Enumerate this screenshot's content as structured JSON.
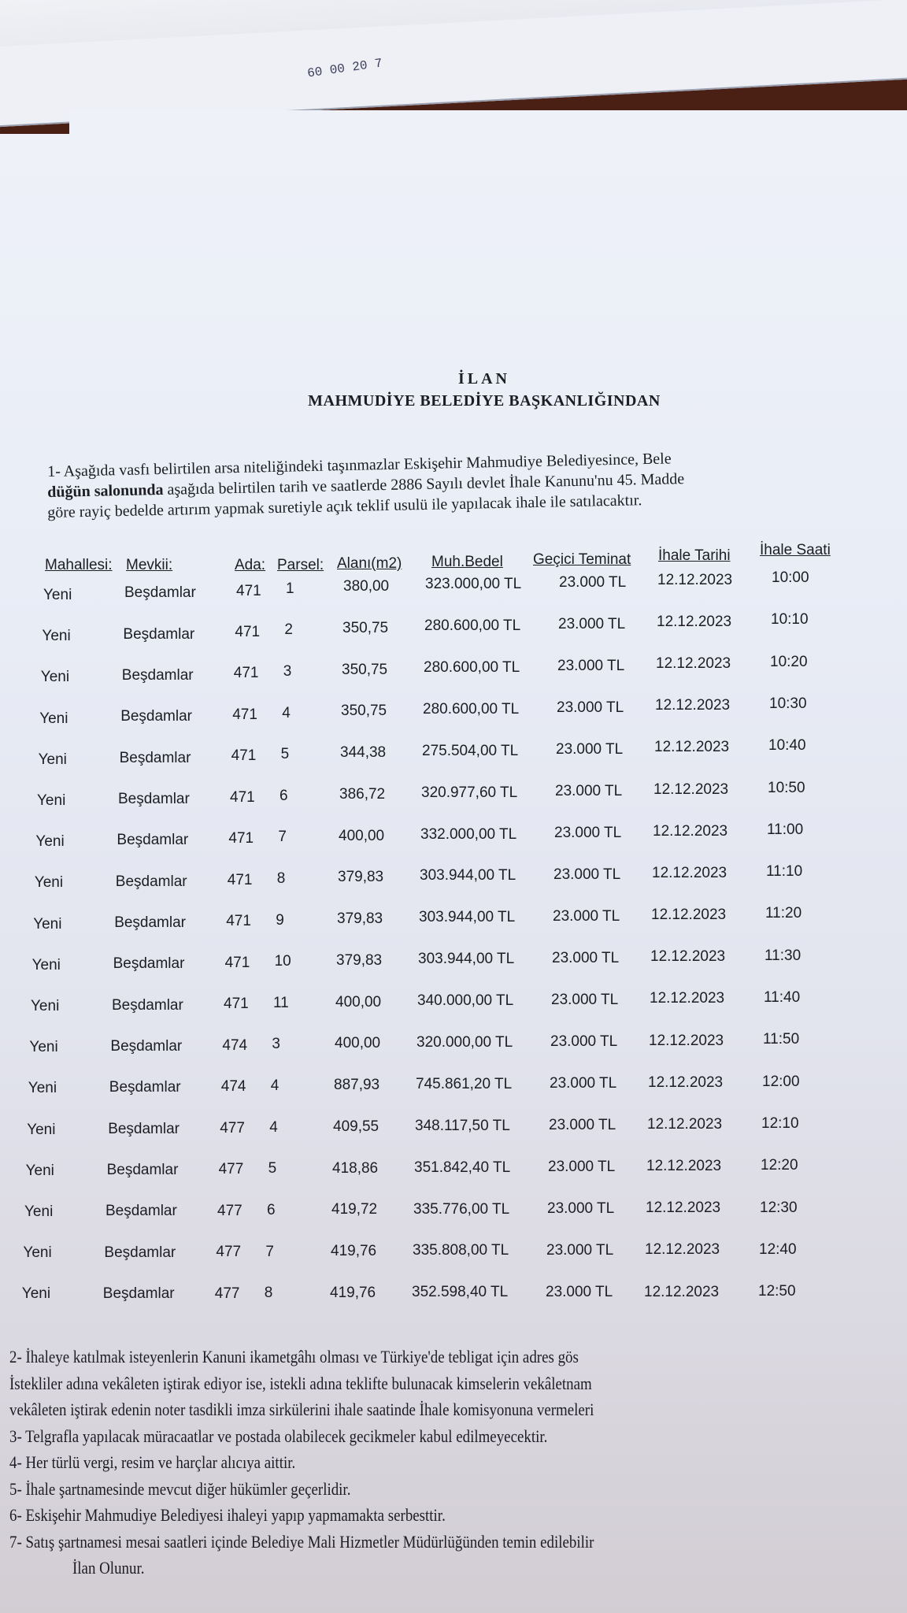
{
  "document": {
    "top_stamp": "60 00 20 7",
    "title": "İLAN",
    "subtitle": "MAHMUDİYE BELEDİYE BAŞKANLIĞINDAN",
    "intro_lines": [
      "1- Aşağıda vasfı belirtilen arsa niteliğindeki taşınmazlar Eskişehir Mahmudiye Belediyesince, Bele",
      "düğün salonunda aşağıda belirtilen tarih ve saatlerde 2886 Sayılı devlet İhale Kanunu'nu 45. Madde",
      "göre  rayiç bedelde artırım yapmak suretiyle açık teklif usulü ile yapılacak ihale ile satılacaktır."
    ],
    "intro_bold": "düğün salonunda",
    "table": {
      "headers": [
        "Mahallesi:",
        "Mevkii:",
        "Ada:",
        "Parsel:",
        "Alanı(m2)",
        "Muh.Bedel",
        "Geçici Teminat",
        "İhale Tarihi",
        "İhale Saati"
      ],
      "rows": [
        [
          "Yeni",
          "Beşdamlar",
          "471",
          "1",
          "380,00",
          "323.000,00 TL",
          "23.000 TL",
          "12.12.2023",
          "10:00"
        ],
        [
          "Yeni",
          "Beşdamlar",
          "471",
          "2",
          "350,75",
          "280.600,00 TL",
          "23.000 TL",
          "12.12.2023",
          "10:10"
        ],
        [
          "Yeni",
          "Beşdamlar",
          "471",
          "3",
          "350,75",
          "280.600,00 TL",
          "23.000 TL",
          "12.12.2023",
          "10:20"
        ],
        [
          "Yeni",
          "Beşdamlar",
          "471",
          "4",
          "350,75",
          "280.600,00 TL",
          "23.000 TL",
          "12.12.2023",
          "10:30"
        ],
        [
          "Yeni",
          "Beşdamlar",
          "471",
          "5",
          "344,38",
          "275.504,00 TL",
          "23.000 TL",
          "12.12.2023",
          "10:40"
        ],
        [
          "Yeni",
          "Beşdamlar",
          "471",
          "6",
          "386,72",
          "320.977,60 TL",
          "23.000 TL",
          "12.12.2023",
          "10:50"
        ],
        [
          "Yeni",
          "Beşdamlar",
          "471",
          "7",
          "400,00",
          "332.000,00 TL",
          "23.000 TL",
          "12.12.2023",
          "11:00"
        ],
        [
          "Yeni",
          "Beşdamlar",
          "471",
          "8",
          "379,83",
          "303.944,00 TL",
          "23.000 TL",
          "12.12.2023",
          "11:10"
        ],
        [
          "Yeni",
          "Beşdamlar",
          "471",
          "9",
          "379,83",
          "303.944,00 TL",
          "23.000 TL",
          "12.12.2023",
          "11:20"
        ],
        [
          "Yeni",
          "Beşdamlar",
          "471",
          "10",
          "379,83",
          "303.944,00 TL",
          "23.000 TL",
          "12.12.2023",
          "11:30"
        ],
        [
          "Yeni",
          "Beşdamlar",
          "471",
          "11",
          "400,00",
          "340.000,00 TL",
          "23.000 TL",
          "12.12.2023",
          "11:40"
        ],
        [
          "Yeni",
          "Beşdamlar",
          "474",
          "3",
          "400,00",
          "320.000,00 TL",
          "23.000 TL",
          "12.12.2023",
          "11:50"
        ],
        [
          "Yeni",
          "Beşdamlar",
          "474",
          "4",
          "887,93",
          "745.861,20 TL",
          "23.000 TL",
          "12.12.2023",
          "12:00"
        ],
        [
          "Yeni",
          "Beşdamlar",
          "477",
          "4",
          "409,55",
          "348.117,50 TL",
          "23.000 TL",
          "12.12.2023",
          "12:10"
        ],
        [
          "Yeni",
          "Beşdamlar",
          "477",
          "5",
          "418,86",
          "351.842,40 TL",
          "23.000 TL",
          "12.12.2023",
          "12:20"
        ],
        [
          "Yeni",
          "Beşdamlar",
          "477",
          "6",
          "419,72",
          "335.776,00 TL",
          "23.000 TL",
          "12.12.2023",
          "12:30"
        ],
        [
          "Yeni",
          "Beşdamlar",
          "477",
          "7",
          "419,76",
          "335.808,00 TL",
          "23.000 TL",
          "12.12.2023",
          "12:40"
        ],
        [
          "Yeni",
          "Beşdamlar",
          "477",
          "8",
          "419,76",
          "352.598,40 TL",
          "23.000 TL",
          "12.12.2023",
          "12:50"
        ]
      ]
    },
    "footer_lines": [
      "2- İhaleye katılmak isteyenlerin Kanuni ikametgâhı olması ve Türkiye'de tebligat için adres gös",
      "İstekliler adına vekâleten iştirak ediyor ise, istekli adına teklifte bulunacak kimselerin vekâletnam",
      "vekâleten iştirak edenin noter tasdikli imza sirkülerini ihale saatinde İhale komisyonuna vermeleri",
      "3- Telgrafla yapılacak müracaatlar ve postada olabilecek gecikmeler kabul edilmeyecektir.",
      "4- Her türlü vergi, resim ve harçlar alıcıya aittir.",
      "5- İhale şartnamesinde mevcut diğer hükümler geçerlidir.",
      "6- Eskişehir Mahmudiye Belediyesi ihaleyi yapıp yapmamakta serbesttir.",
      "7- Satış şartnamesi mesai saatleri içinde Belediye Mali Hizmetler Müdürlüğünden temin edilebilir",
      "İlan Olunur."
    ]
  }
}
